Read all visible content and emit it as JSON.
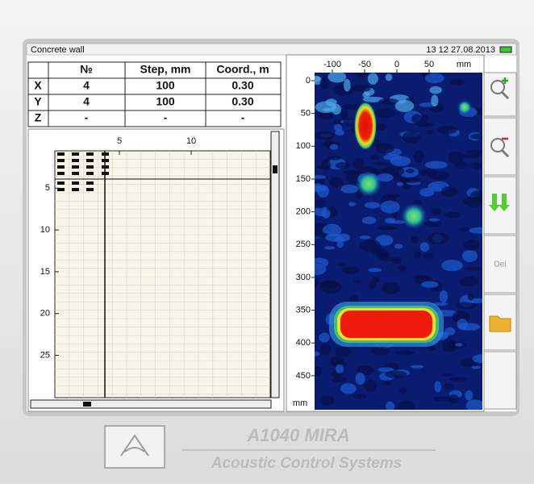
{
  "header": {
    "title": "Concrete wall",
    "datetime": "13 12 27.08.2013"
  },
  "table": {
    "columns": [
      "№",
      "Step, mm",
      "Coord., m"
    ],
    "rows": [
      [
        "X",
        "4",
        "100",
        "0.30"
      ],
      [
        "Y",
        "4",
        "100",
        "0.30"
      ],
      [
        "Z",
        "-",
        "-",
        "-"
      ]
    ]
  },
  "scan_grid": {
    "xticks": [
      5,
      10
    ],
    "yticks": [
      5,
      10,
      15,
      20,
      25
    ]
  },
  "image": {
    "xticks": [
      -100,
      -50,
      0,
      50
    ],
    "x_unit": "mm",
    "yticks": [
      0,
      50,
      100,
      150,
      200,
      250,
      300,
      350,
      400,
      450
    ],
    "y_unit": "mm"
  },
  "toolbar": {
    "delete": "Del"
  },
  "footer": {
    "model": "A1040 MIRA",
    "company": "Acoustic Control Systems"
  }
}
